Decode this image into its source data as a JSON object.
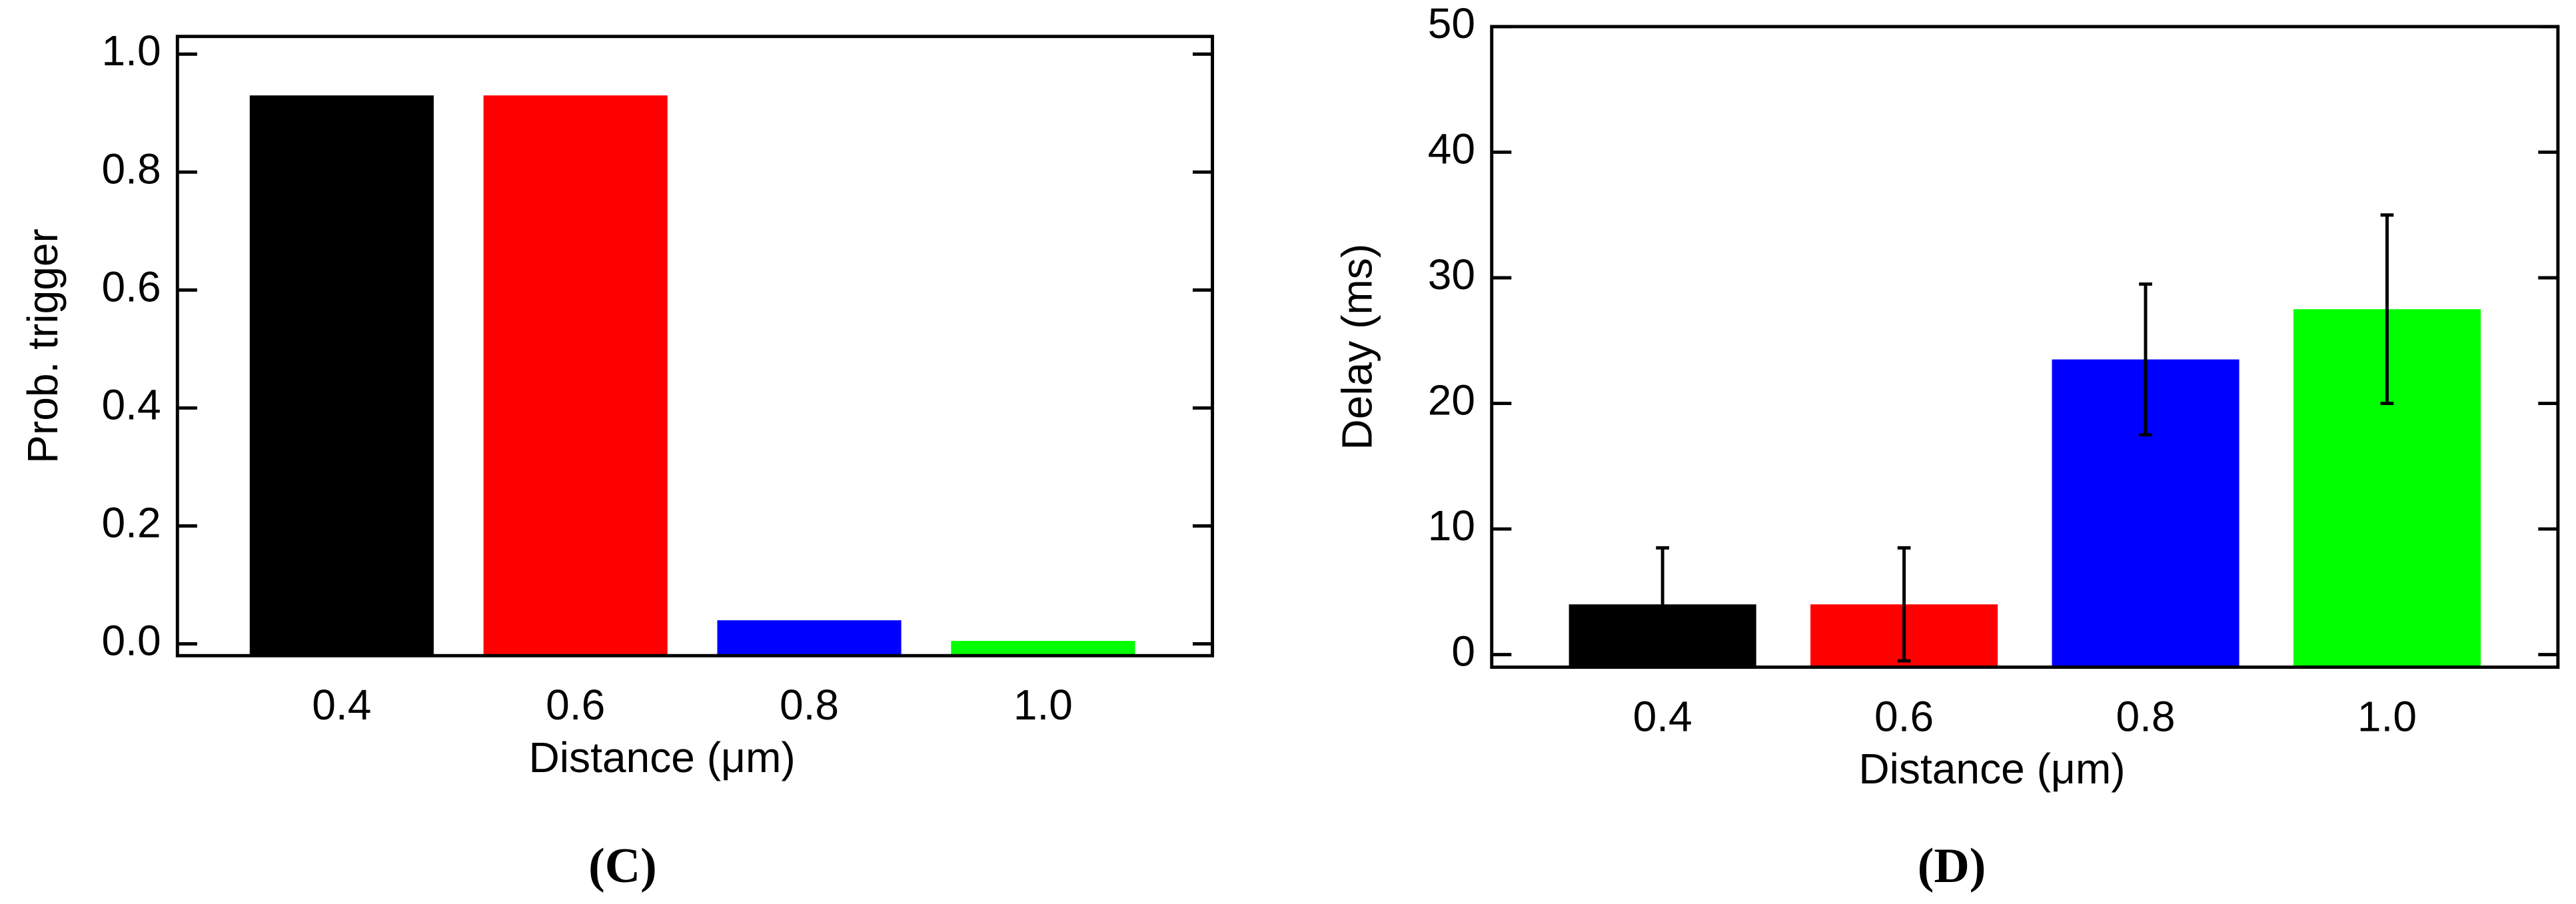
{
  "chart_data": [
    {
      "type": "bar",
      "caption": "(C)",
      "xlabel": "Distance (μm)",
      "ylabel": "Prob. trigger",
      "categories": [
        "0.4",
        "0.6",
        "0.8",
        "1.0"
      ],
      "values": [
        0.93,
        0.93,
        0.04,
        0.005
      ],
      "colors": [
        "#000000",
        "#ff0000",
        "#0000ff",
        "#00ff00"
      ],
      "ylim": [
        -0.02,
        1.03
      ],
      "yticks": [
        {
          "value": 0,
          "label": "0.0"
        },
        0.2,
        0.4,
        0.6,
        0.8,
        {
          "value": 1,
          "label": "1.0"
        }
      ]
    },
    {
      "type": "bar",
      "caption": "(D)",
      "xlabel": "Distance (μm)",
      "ylabel": "Delay (ms)",
      "categories": [
        "0.4",
        "0.6",
        "0.8",
        "1.0"
      ],
      "values": [
        4,
        4,
        23.5,
        27.5
      ],
      "errors": [
        4.5,
        4.5,
        6,
        7.5
      ],
      "colors": [
        "#000000",
        "#ff0000",
        "#0000ff",
        "#00ff00"
      ],
      "ylim": [
        -1,
        50
      ],
      "yticks": [
        0,
        10,
        20,
        30,
        40,
        50
      ]
    }
  ]
}
